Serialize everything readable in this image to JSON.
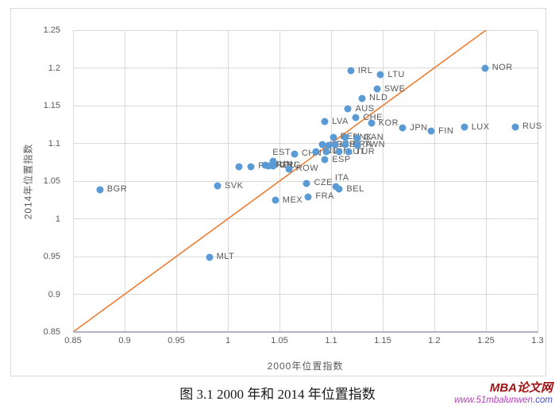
{
  "figure": {
    "caption": "图 3.1 2000 年和 2014 年位置指数"
  },
  "watermark": {
    "brand": "MBA论文网",
    "brand_color": "#9e1313",
    "url_main": "www.51mbalunwen",
    "url_suffix": ".com",
    "url_main_color": "#c136c9",
    "url_suffix_color": "#4149e0",
    "url_full": "www.51mbalunwen.com"
  },
  "chart_data": {
    "type": "scatter",
    "title": "图 3.1 2000 年和 2014 年位置指数",
    "xlabel": "2000年位置指数",
    "ylabel": "2014年位置指数",
    "xlim": [
      0.85,
      1.3
    ],
    "ylim": [
      0.85,
      1.25
    ],
    "grid": true,
    "marker_color": "#5b9bd5",
    "gridline_color": "#d9d9d9",
    "reference_line": {
      "name": "y=x line",
      "color": "#ed7d31",
      "from": [
        0.85,
        0.85
      ],
      "to": [
        1.253,
        1.253
      ]
    },
    "xticks": [
      [
        0.85,
        "0.85"
      ],
      [
        0.9,
        "0.9"
      ],
      [
        0.95,
        "0.95"
      ],
      [
        1,
        "1"
      ],
      [
        1.05,
        "1.05"
      ],
      [
        1.1,
        "1.1"
      ],
      [
        1.15,
        "1.15"
      ],
      [
        1.2,
        "1.2"
      ],
      [
        1.25,
        "1.25"
      ],
      [
        1.3,
        "1.3"
      ]
    ],
    "yticks": [
      [
        1.25,
        "1.25"
      ],
      [
        1.2,
        "1.2"
      ],
      [
        1.15,
        "1.15"
      ],
      [
        1.1,
        "1.1"
      ],
      [
        1.05,
        "1.05"
      ],
      [
        1,
        "1"
      ],
      [
        0.95,
        "0.95"
      ],
      [
        0.9,
        "0.9"
      ],
      [
        0.85,
        "0.85"
      ]
    ],
    "points": [
      {
        "label": "BGR",
        "x": 0.876,
        "y": 1.0385,
        "label_pos": "right"
      },
      {
        "label": "SVK",
        "x": 0.99,
        "y": 1.0435,
        "label_pos": "right"
      },
      {
        "label": "MLT",
        "x": 0.982,
        "y": 0.949,
        "label_pos": "right"
      },
      {
        "label": "MEX",
        "x": 1.046,
        "y": 1.0245,
        "label_pos": "right"
      },
      {
        "label": "FRA",
        "x": 1.078,
        "y": 1.029,
        "label_pos": "right"
      },
      {
        "label": "CZE",
        "x": 1.0765,
        "y": 1.047,
        "label_pos": "right"
      },
      {
        "label": "ITA",
        "x": 1.1045,
        "y": 1.0425,
        "label_pos": "above"
      },
      {
        "label": "BEL",
        "x": 1.108,
        "y": 1.039,
        "label_pos": "right"
      },
      {
        "label": "ESP",
        "x": 1.094,
        "y": 1.078,
        "label_pos": "right"
      },
      {
        "label": "",
        "x": 1.011,
        "y": 1.0685,
        "label_pos": "right"
      },
      {
        "label": "PRT",
        "x": 1.0225,
        "y": 1.069,
        "label_pos": "right"
      },
      {
        "label": "HUN",
        "x": 1.0365,
        "y": 1.0715,
        "label_pos": "right"
      },
      {
        "label": "ROU",
        "x": 1.0395,
        "y": 1.0705,
        "label_pos": "right"
      },
      {
        "label": "GRC",
        "x": 1.0435,
        "y": 1.0705,
        "label_pos": "right"
      },
      {
        "label": "EST",
        "x": 1.044,
        "y": 1.0765,
        "label_pos": "above"
      },
      {
        "label": "ROW",
        "x": 1.059,
        "y": 1.066,
        "label_pos": "right"
      },
      {
        "label": "CHN",
        "x": 1.0645,
        "y": 1.086,
        "label_pos": "right"
      },
      {
        "label": "IND",
        "x": 1.085,
        "y": 1.089,
        "label_pos": "right"
      },
      {
        "label": "IDN",
        "x": 1.0955,
        "y": 1.0885,
        "label_pos": "right"
      },
      {
        "label": "AUT",
        "x": 1.108,
        "y": 1.0885,
        "label_pos": "right"
      },
      {
        "label": "TUR",
        "x": 1.117,
        "y": 1.0885,
        "label_pos": "right"
      },
      {
        "label": "HRV",
        "x": 1.0915,
        "y": 1.098,
        "label_pos": "right"
      },
      {
        "label": "GBR",
        "x": 1.098,
        "y": 1.0975,
        "label_pos": "right"
      },
      {
        "label": "USA",
        "x": 1.104,
        "y": 1.098,
        "label_pos": "right"
      },
      {
        "label": "BRA",
        "x": 1.114,
        "y": 1.098,
        "label_pos": "right"
      },
      {
        "label": "TWN",
        "x": 1.125,
        "y": 1.0975,
        "label_pos": "right"
      },
      {
        "label": "DEU",
        "x": 1.102,
        "y": 1.108,
        "label_pos": "right"
      },
      {
        "label": "DNK",
        "x": 1.114,
        "y": 1.1075,
        "label_pos": "right"
      },
      {
        "label": "CAN",
        "x": 1.125,
        "y": 1.107,
        "label_pos": "right"
      },
      {
        "label": "LVA",
        "x": 1.094,
        "y": 1.1285,
        "label_pos": "right"
      },
      {
        "label": "CHE",
        "x": 1.124,
        "y": 1.134,
        "label_pos": "right"
      },
      {
        "label": "KOR",
        "x": 1.139,
        "y": 1.1265,
        "label_pos": "right"
      },
      {
        "label": "AUS",
        "x": 1.1165,
        "y": 1.1455,
        "label_pos": "right"
      },
      {
        "label": "NLD",
        "x": 1.13,
        "y": 1.16,
        "label_pos": "right"
      },
      {
        "label": "SWE",
        "x": 1.1445,
        "y": 1.172,
        "label_pos": "right"
      },
      {
        "label": "LTU",
        "x": 1.148,
        "y": 1.191,
        "label_pos": "right"
      },
      {
        "label": "IRL",
        "x": 1.119,
        "y": 1.196,
        "label_pos": "right"
      },
      {
        "label": "NOR",
        "x": 1.249,
        "y": 1.1995,
        "label_pos": "right"
      },
      {
        "label": "JPN",
        "x": 1.1695,
        "y": 1.1205,
        "label_pos": "right"
      },
      {
        "label": "FIN",
        "x": 1.197,
        "y": 1.116,
        "label_pos": "right"
      },
      {
        "label": "LUX",
        "x": 1.229,
        "y": 1.1215,
        "label_pos": "right"
      },
      {
        "label": "RUS",
        "x": 1.2785,
        "y": 1.122,
        "label_pos": "right"
      }
    ]
  }
}
